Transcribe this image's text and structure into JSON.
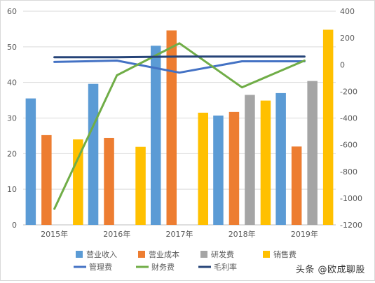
{
  "watermark": "头条 @欧成聊股",
  "chart_data": {
    "type": "bar",
    "categories": [
      "2015年",
      "2016年",
      "2017年",
      "2018年",
      "2019年"
    ],
    "y_left": {
      "lim": [
        0,
        60
      ],
      "ticks": [
        0,
        10,
        20,
        30,
        40,
        50,
        60
      ]
    },
    "y_right": {
      "lim": [
        -1200,
        400
      ],
      "ticks": [
        400,
        200,
        0,
        -200,
        -400,
        -600,
        -800,
        -1000,
        -1200
      ]
    },
    "grid": true,
    "legend_position": "bottom",
    "bar_series": [
      {
        "name": "营业收入",
        "color": "#5b9bd5",
        "values": [
          35.5,
          39.6,
          50.3,
          30.7,
          37.0
        ]
      },
      {
        "name": "营业成本",
        "color": "#ed7d31",
        "values": [
          25.2,
          24.4,
          54.6,
          31.7,
          22.0
        ]
      },
      {
        "name": "研发费",
        "color": "#a5a5a5",
        "values": [
          null,
          null,
          null,
          36.5,
          40.4
        ]
      },
      {
        "name": "销售费",
        "color": "#ffc000",
        "values": [
          24.0,
          21.9,
          31.5,
          34.9,
          54.8
        ]
      }
    ],
    "line_series": [
      {
        "name": "管理费",
        "color": "#4472c4",
        "axis": "right",
        "values": [
          20,
          30,
          -60,
          25,
          25
        ]
      },
      {
        "name": "财务费",
        "color": "#70ad47",
        "axis": "right",
        "values": [
          -1080,
          -80,
          160,
          -170,
          30
        ]
      },
      {
        "name": "毛利率",
        "color": "#264478",
        "axis": "right",
        "values": [
          55,
          55,
          60,
          60,
          60
        ]
      }
    ]
  }
}
